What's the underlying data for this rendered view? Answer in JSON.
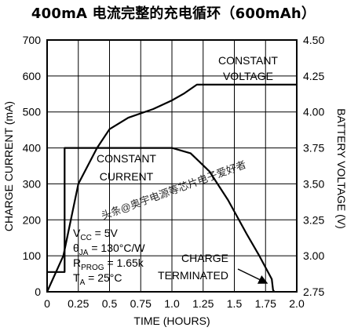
{
  "title": "400mA 电流完整的充电循环（600mAh）",
  "watermark": "头条@奥宇电源等芯片电子爱好者",
  "chart_data": {
    "type": "line",
    "title": "400mA 电流完整的充电循环（600mAh）",
    "xlabel": "TIME (HOURS)",
    "ylabel": "CHARGE CURRENT (mA)",
    "y2label": "BATTERY VOLTAGE (V)",
    "xlim": [
      0,
      2.0
    ],
    "ylim": [
      0,
      700
    ],
    "y2lim": [
      2.75,
      4.5
    ],
    "x_ticks": [
      0,
      0.25,
      0.5,
      0.75,
      1.0,
      1.25,
      1.5,
      1.75,
      2.0
    ],
    "x_tick_labels": [
      "0",
      "0.25",
      "0.5",
      "0.75",
      "1.0",
      "1.25",
      "1.5",
      "1.75",
      "2.0"
    ],
    "y_ticks": [
      0,
      100,
      200,
      300,
      400,
      500,
      600,
      700
    ],
    "y_tick_labels": [
      "0",
      "100",
      "200",
      "300",
      "400",
      "500",
      "600",
      "700"
    ],
    "y2_ticks": [
      2.75,
      3.0,
      3.25,
      3.5,
      3.75,
      4.0,
      4.25,
      4.5
    ],
    "y2_tick_labels": [
      "2.75",
      "3.00",
      "3.25",
      "3.50",
      "3.75",
      "4.00",
      "4.25",
      "4.50"
    ],
    "grid": true,
    "series": [
      {
        "axis": "left",
        "x": [
          0,
          0.14,
          0.14,
          0.4,
          0.45,
          0.7,
          1.0,
          1.15,
          1.3,
          1.45,
          1.6,
          1.7,
          1.8,
          1.81,
          1.82
        ],
        "values": [
          55,
          55,
          400,
          400,
          400,
          400,
          400,
          385,
          335,
          255,
          160,
          100,
          35,
          5,
          0
        ]
      },
      {
        "axis": "right",
        "x": [
          0,
          0.13,
          0.25,
          0.4,
          0.5,
          0.65,
          0.85,
          1.0,
          1.1,
          1.2,
          1.5,
          2.0
        ],
        "values": [
          2.75,
          3.0,
          3.5,
          3.75,
          3.88,
          3.96,
          4.02,
          4.08,
          4.13,
          4.19,
          4.19,
          4.19
        ]
      }
    ],
    "annotations": {
      "constant_voltage": [
        "CONSTANT",
        "VOLTAGE"
      ],
      "constant_current": [
        "CONSTANT",
        "CURRENT"
      ],
      "charge_terminated": [
        "CHARGE",
        "TERMINATED"
      ],
      "conditions": [
        {
          "sym": "V",
          "sub": "CC",
          "rest": " = 5V"
        },
        {
          "sym": "θ",
          "sub": "JA",
          "rest": " = 130°C/W"
        },
        {
          "sym": "R",
          "sub": "PROG",
          "rest": " = 1.65k"
        },
        {
          "sym": "T",
          "sub": "A",
          "rest": " = 25°C"
        }
      ]
    }
  }
}
